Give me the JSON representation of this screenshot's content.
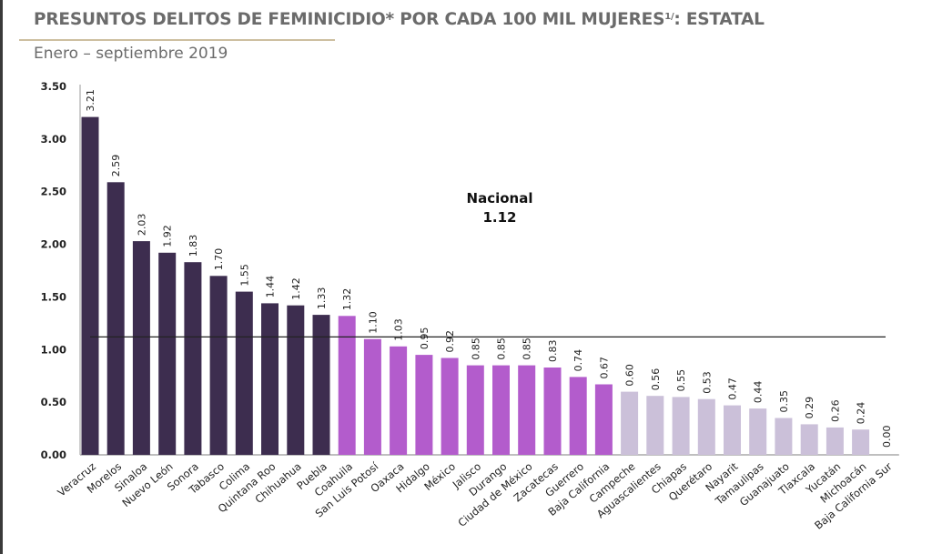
{
  "header": {
    "title_main": "PRESUNTOS DELITOS DE FEMINICIDIO* POR CADA 100 MIL MUJERES",
    "title_sup": "1/",
    "title_suffix": ": ESTATAL",
    "subtitle": "Enero – septiembre 2019"
  },
  "colors": {
    "above_dark": "#3d2d4f",
    "mid_purple": "#b35ccc",
    "low_lilac": "#cbc0d9",
    "axis": "#aaaaaa",
    "national_line": "#222222",
    "title_gray": "#6b6b6b",
    "rule_tan": "#cdbfa0"
  },
  "chart_data": {
    "type": "bar",
    "title": "PRESUNTOS DELITOS DE FEMINICIDIO* POR CADA 100 MIL MUJERES 1/: ESTATAL",
    "subtitle": "Enero – septiembre 2019",
    "xlabel": "",
    "ylabel": "",
    "ylim": [
      0,
      3.5
    ],
    "yticks": [
      0,
      0.5,
      1.0,
      1.5,
      2.0,
      2.5,
      3.0,
      3.5
    ],
    "ytick_labels": [
      "0.00",
      "0.50",
      "1.00",
      "1.50",
      "2.00",
      "2.50",
      "3.00",
      "3.50"
    ],
    "grid": false,
    "categories": [
      "Veracruz",
      "Morelos",
      "Sinaloa",
      "Nuevo León",
      "Sonora",
      "Tabasco",
      "Colima",
      "Quintana Roo",
      "Chihuahua",
      "Puebla",
      "Coahuila",
      "San Luis Potosí",
      "Oaxaca",
      "Hidalgo",
      "México",
      "Jalisco",
      "Durango",
      "Ciudad de México",
      "Zacatecas",
      "Guerrero",
      "Baja California",
      "Campeche",
      "Aguascalientes",
      "Chiapas",
      "Querétaro",
      "Nayarit",
      "Tamaulipas",
      "Guanajuato",
      "Tlaxcala",
      "Yucatán",
      "Michoacán",
      "Baja California Sur"
    ],
    "values": [
      3.21,
      2.59,
      2.03,
      1.92,
      1.83,
      1.7,
      1.55,
      1.44,
      1.42,
      1.33,
      1.32,
      1.1,
      1.03,
      0.95,
      0.92,
      0.85,
      0.85,
      0.85,
      0.83,
      0.74,
      0.67,
      0.6,
      0.56,
      0.55,
      0.53,
      0.47,
      0.44,
      0.35,
      0.29,
      0.26,
      0.24,
      0.0
    ],
    "value_labels": [
      "3.21",
      "2.59",
      "2.03",
      "1.92",
      "1.83",
      "1.70",
      "1.55",
      "1.44",
      "1.42",
      "1.33",
      "1.32",
      "1.10",
      "1.03",
      "0.95",
      "0.92",
      "0.85",
      "0.85",
      "0.85",
      "0.83",
      "0.74",
      "0.67",
      "0.60",
      "0.56",
      "0.55",
      "0.53",
      "0.47",
      "0.44",
      "0.35",
      "0.29",
      "0.26",
      "0.24",
      "0.00"
    ],
    "color_groups": [
      "above_dark",
      "above_dark",
      "above_dark",
      "above_dark",
      "above_dark",
      "above_dark",
      "above_dark",
      "above_dark",
      "above_dark",
      "above_dark",
      "mid_purple",
      "mid_purple",
      "mid_purple",
      "mid_purple",
      "mid_purple",
      "mid_purple",
      "mid_purple",
      "mid_purple",
      "mid_purple",
      "mid_purple",
      "mid_purple",
      "low_lilac",
      "low_lilac",
      "low_lilac",
      "low_lilac",
      "low_lilac",
      "low_lilac",
      "low_lilac",
      "low_lilac",
      "low_lilac",
      "low_lilac",
      "low_lilac"
    ],
    "reference_line": {
      "label": "Nacional",
      "value": 1.12,
      "value_label": "1.12"
    }
  }
}
